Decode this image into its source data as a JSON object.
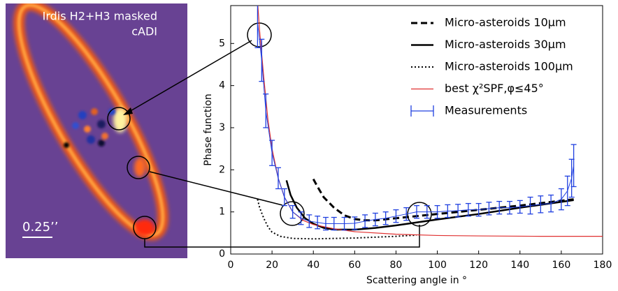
{
  "image_panel": {
    "title_line1": "Irdis H2+H3 masked",
    "title_line2": "cADI",
    "scale_label": "0.25’’"
  },
  "chart_data": {
    "type": "line",
    "xlabel": "Scattering angle in °",
    "ylabel": "Phase function",
    "xlim": [
      0,
      180
    ],
    "ylim": [
      0,
      5.9
    ],
    "xticks": [
      0,
      20,
      40,
      60,
      80,
      100,
      120,
      140,
      160,
      180
    ],
    "yticks": [
      0,
      1,
      2,
      3,
      4,
      5
    ],
    "legend": "upper right",
    "series": [
      {
        "name": "Micro-asteroids 10μm",
        "color": "#000000",
        "linestyle": "dashed",
        "x": [
          40,
          42,
          45,
          50,
          55,
          60,
          65,
          70,
          80,
          90,
          100,
          120,
          140,
          166
        ],
        "values": [
          1.78,
          1.6,
          1.35,
          1.1,
          0.92,
          0.83,
          0.8,
          0.8,
          0.85,
          0.9,
          0.95,
          1.05,
          1.15,
          1.3
        ]
      },
      {
        "name": "Micro-asteroids 30μm",
        "color": "#000000",
        "linestyle": "solid",
        "x": [
          27,
          29,
          32,
          36,
          40,
          45,
          50,
          60,
          70,
          80,
          90,
          100,
          120,
          140,
          166
        ],
        "values": [
          1.75,
          1.4,
          1.1,
          0.85,
          0.72,
          0.62,
          0.58,
          0.58,
          0.62,
          0.68,
          0.75,
          0.82,
          0.95,
          1.1,
          1.28
        ]
      },
      {
        "name": "Micro-asteroids 100μm",
        "color": "#000000",
        "linestyle": "dotted",
        "x": [
          13,
          14,
          16,
          18,
          20,
          24,
          30,
          40,
          50,
          60,
          70,
          80,
          90
        ],
        "values": [
          1.3,
          1.1,
          0.85,
          0.65,
          0.52,
          0.42,
          0.37,
          0.36,
          0.37,
          0.38,
          0.4,
          0.42,
          0.45
        ]
      },
      {
        "name": "best χ²SPF,φ≤45°",
        "color": "#e03030",
        "linestyle": "solid",
        "x": [
          13,
          14,
          16,
          18,
          20,
          23,
          26,
          30,
          35,
          40,
          50,
          60,
          80,
          100,
          120,
          150,
          180
        ],
        "values": [
          6.0,
          5.3,
          4.2,
          3.2,
          2.5,
          1.8,
          1.35,
          1.0,
          0.8,
          0.7,
          0.6,
          0.53,
          0.47,
          0.44,
          0.43,
          0.42,
          0.42
        ]
      },
      {
        "name": "Measurements",
        "color": "#2040e0",
        "linestyle": "errorbar",
        "x": [
          13,
          15,
          17,
          20,
          23,
          26,
          30,
          34,
          38,
          42,
          46,
          50,
          55,
          60,
          65,
          70,
          75,
          80,
          85,
          90,
          95,
          100,
          105,
          110,
          115,
          120,
          125,
          130,
          135,
          140,
          145,
          150,
          155,
          160,
          163,
          165,
          166
        ],
        "values": [
          5.5,
          4.6,
          3.4,
          2.4,
          1.8,
          1.35,
          1.0,
          0.85,
          0.78,
          0.75,
          0.72,
          0.72,
          0.72,
          0.73,
          0.78,
          0.82,
          0.85,
          0.9,
          0.95,
          1.0,
          1.0,
          1.0,
          1.02,
          1.03,
          1.05,
          1.05,
          1.08,
          1.1,
          1.1,
          1.12,
          1.15,
          1.18,
          1.2,
          1.3,
          1.5,
          1.8,
          2.1
        ],
        "errors": [
          0.6,
          0.5,
          0.4,
          0.3,
          0.25,
          0.2,
          0.15,
          0.15,
          0.15,
          0.15,
          0.15,
          0.15,
          0.15,
          0.15,
          0.15,
          0.15,
          0.15,
          0.15,
          0.15,
          0.15,
          0.15,
          0.15,
          0.15,
          0.15,
          0.15,
          0.15,
          0.15,
          0.15,
          0.15,
          0.15,
          0.2,
          0.2,
          0.2,
          0.25,
          0.35,
          0.45,
          0.5
        ]
      }
    ]
  }
}
